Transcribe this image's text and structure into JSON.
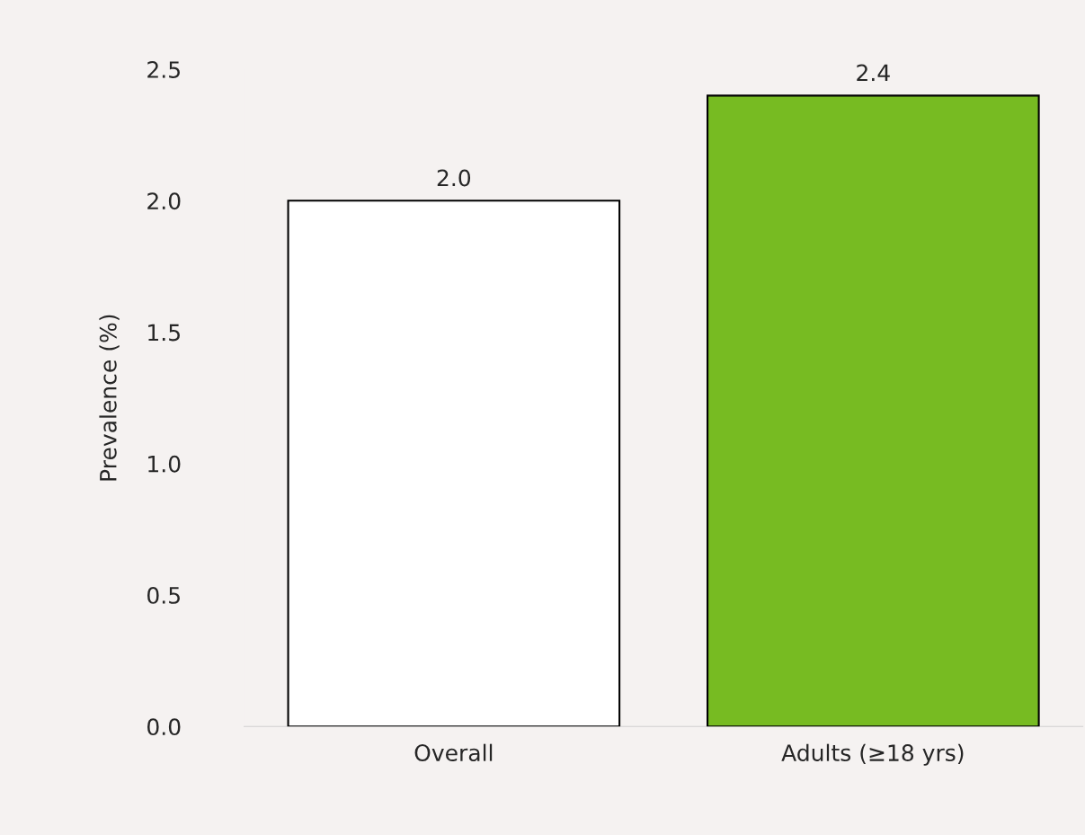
{
  "chart_data": {
    "type": "bar",
    "ylabel": "Prevalence (%)",
    "categories": [
      "Overall",
      "Adults (≥18 yrs)"
    ],
    "values": [
      2.0,
      2.4
    ],
    "colors": [
      "#ffffff",
      "#77bb22"
    ],
    "value_labels": [
      "2.0",
      "2.4"
    ],
    "ylim": [
      0,
      2.5
    ],
    "yticks": [
      {
        "value": 0,
        "label": "0.0"
      },
      0.5,
      {
        "value": 1,
        "label": "1.0"
      },
      1.5,
      {
        "value": 2,
        "label": "2.0"
      },
      2.5
    ],
    "grid": false,
    "legend": false
  }
}
